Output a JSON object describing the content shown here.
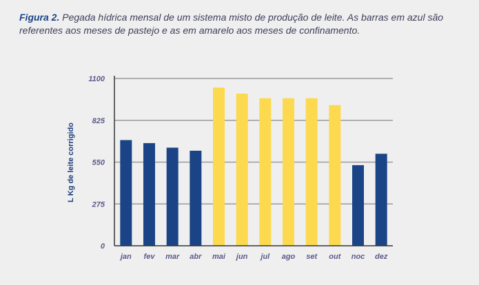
{
  "caption": {
    "figure": "Figura 2.",
    "text": " Pegada hídrica mensal de um sistema misto de produção de leite. As barras em azul são referentes aos meses de pastejo e as em amarelo aos meses de confinamento."
  },
  "colors": {
    "pastejo": "#1b4486",
    "confinamento": "#fcd94f",
    "grid": "#9a9a9a",
    "axis": "#333333",
    "tick_text": "#5a5a8a"
  },
  "chart_data": {
    "type": "bar",
    "ylabel": "L Kg de leite corrigido",
    "xlabel": "",
    "ylim": [
      0,
      1100
    ],
    "yticks": [
      0,
      275,
      550,
      825,
      1100
    ],
    "grid": true,
    "categories": [
      "jan",
      "fev",
      "mar",
      "abr",
      "mai",
      "jun",
      "jul",
      "ago",
      "set",
      "out",
      "noc",
      "dez"
    ],
    "values": [
      695,
      675,
      645,
      625,
      1040,
      1000,
      970,
      970,
      970,
      925,
      530,
      605
    ],
    "groups": [
      "pastejo",
      "pastejo",
      "pastejo",
      "pastejo",
      "confinamento",
      "confinamento",
      "confinamento",
      "confinamento",
      "confinamento",
      "confinamento",
      "pastejo",
      "pastejo"
    ]
  }
}
